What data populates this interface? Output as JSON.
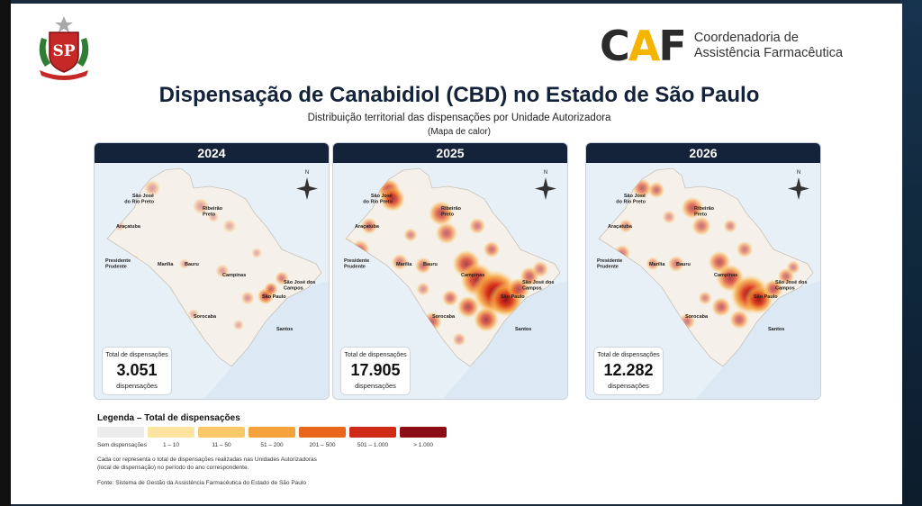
{
  "header": {
    "logo_text": "SP",
    "caf_mark": {
      "c": "C",
      "a": "A",
      "f": "F"
    },
    "caf_line1": "Coordenadoria de",
    "caf_line2": "Assistência Farmacêutica"
  },
  "title": "Dispensação de Canabidiol (CBD) no Estado de São Paulo",
  "subtitle": "Distribuição territorial das dispensações por Unidade Autorizadora",
  "subtitle2": "(Mapa de calor)",
  "north_label": "N",
  "panels": [
    {
      "year": "2024",
      "total_label": "Total de dispensações",
      "total_value": "3.051",
      "total_unit": "dispensações"
    },
    {
      "year": "2025",
      "total_label": "Total de dispensações",
      "total_value": "17.905",
      "total_unit": "dispensações"
    },
    {
      "year": "2026",
      "total_label": "Total de dispensações",
      "total_value": "12.282",
      "total_unit": "dispensações"
    }
  ],
  "cities": [
    {
      "name": "São José",
      "name2": "do Rio Preto"
    },
    {
      "name": "Ribeirão",
      "name2": "Preto"
    },
    {
      "name": "Araçatuba"
    },
    {
      "name": "Presidente",
      "name2": "Prudente"
    },
    {
      "name": "Marília"
    },
    {
      "name": "Bauru"
    },
    {
      "name": "Campinas"
    },
    {
      "name": "São José dos",
      "name2": "Campos"
    },
    {
      "name": "São Paulo"
    },
    {
      "name": "Sorocaba"
    },
    {
      "name": "Santos"
    }
  ],
  "legend": {
    "title": "Legenda – Total de dispensações",
    "items": [
      {
        "label": "Sem dispensações",
        "color": "#ececec"
      },
      {
        "label": "1 – 10",
        "color": "#fde3a0"
      },
      {
        "label": "11 – 50",
        "color": "#fbc96a"
      },
      {
        "label": "51 – 200",
        "color": "#f6a23a"
      },
      {
        "label": "201 – 500",
        "color": "#e9661d"
      },
      {
        "label": "501 – 1.000",
        "color": "#cf2a18"
      },
      {
        "label": "> 1.000",
        "color": "#8c0d16"
      }
    ],
    "note_line1": "Cada cor representa o total de dispensações realizadas nas Unidades Autorizadoras",
    "note_line2": "(local de dispensação) no período do ano correspondente."
  },
  "source": "Fonte: Sistema de Gestão da Assistência Farmacêutica do Estado de São Paulo",
  "colors": {
    "navy": "#14233a",
    "caf_yellow": "#f4b400",
    "sea": "#dce9f5",
    "land": "#f5f1ea"
  }
}
